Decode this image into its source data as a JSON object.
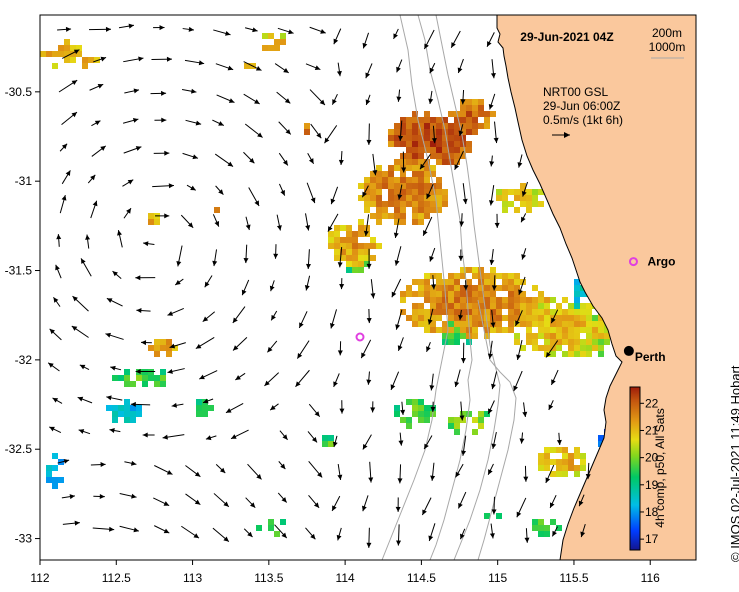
{
  "title": "29-Jun-2021 04Z",
  "depth_legend": {
    "contour_1": "200m",
    "contour_2": "1000m"
  },
  "current_legend": {
    "source": "NRT00 GSL",
    "time": "29-Jun 06:00Z",
    "scale": "0.5m/s (1kt 6h)"
  },
  "places": [
    {
      "name": "Argo",
      "lon": 115.89,
      "lat": -31.45,
      "marker": "magenta-circle"
    },
    {
      "name": "Perth",
      "lon": 115.86,
      "lat": -31.95,
      "marker": "black-dot"
    }
  ],
  "colorbar": {
    "label": "4h comp, p50, All Sats",
    "ticks": [
      "17",
      "18",
      "19",
      "20",
      "21",
      "22"
    ],
    "min": 16.6,
    "max": 22.6
  },
  "axes": {
    "x_ticks": [
      "112",
      "112.5",
      "113",
      "113.5",
      "114",
      "114.5",
      "115",
      "115.5",
      "116"
    ],
    "y_ticks": [
      "-30.5",
      "-31",
      "-31.5",
      "-32",
      "-32.5",
      "-33"
    ],
    "lon_range": [
      112,
      116.3
    ],
    "lat_range": [
      -33.12,
      -30.07
    ]
  },
  "credit": "© IMOS 02-Jul-2021 11:49 Hobart",
  "colors": {
    "land": "#fac89d",
    "bathymetry": "#a8a8a8",
    "argo": "#e040e0",
    "arrow": "#000000"
  }
}
